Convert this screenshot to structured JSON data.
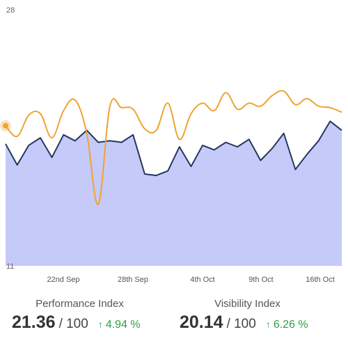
{
  "chart_data": {
    "type": "line",
    "ylim": [
      11,
      28
    ],
    "y_ticks": [
      "28",
      "11"
    ],
    "grid": false,
    "x_tick_labels": [
      "22nd Sep",
      "28th Sep",
      "4th Oct",
      "9th Oct",
      "16th Oct"
    ],
    "series": [
      {
        "role": "area",
        "color": "#24365f",
        "fill": "#c5caf8",
        "values": [
          19.1,
          17.7,
          19.0,
          19.5,
          18.2,
          19.7,
          19.3,
          20.0,
          19.2,
          19.3,
          19.2,
          19.7,
          17.1,
          17.0,
          17.3,
          18.9,
          17.6,
          19.0,
          18.7,
          19.2,
          18.9,
          19.4,
          18.0,
          18.8,
          19.8,
          17.4,
          18.4,
          19.3,
          20.6,
          20.0
        ]
      },
      {
        "role": "line",
        "color": "#f0a331",
        "values": [
          20.3,
          19.6,
          21.0,
          21.1,
          19.5,
          21.3,
          22.0,
          19.8,
          15.1,
          21.6,
          21.5,
          21.4,
          20.1,
          20.0,
          21.8,
          19.4,
          21.1,
          21.8,
          21.3,
          22.5,
          21.4,
          21.8,
          21.6,
          22.3,
          22.6,
          21.7,
          22.1,
          21.6,
          21.5,
          21.2
        ]
      }
    ],
    "marker": {
      "series_index": 1,
      "point_index": 0,
      "color": "#f0a331"
    }
  },
  "stats": {
    "performance": {
      "label": "Performance Index",
      "value": "21.36",
      "max": "/ 100",
      "change": "4.94 %",
      "change_color": "#2e9e44"
    },
    "visibility": {
      "label": "Visibility Index",
      "value": "20.14",
      "max": "/ 100",
      "change": "6.26 %",
      "change_color": "#2e9e44"
    }
  }
}
